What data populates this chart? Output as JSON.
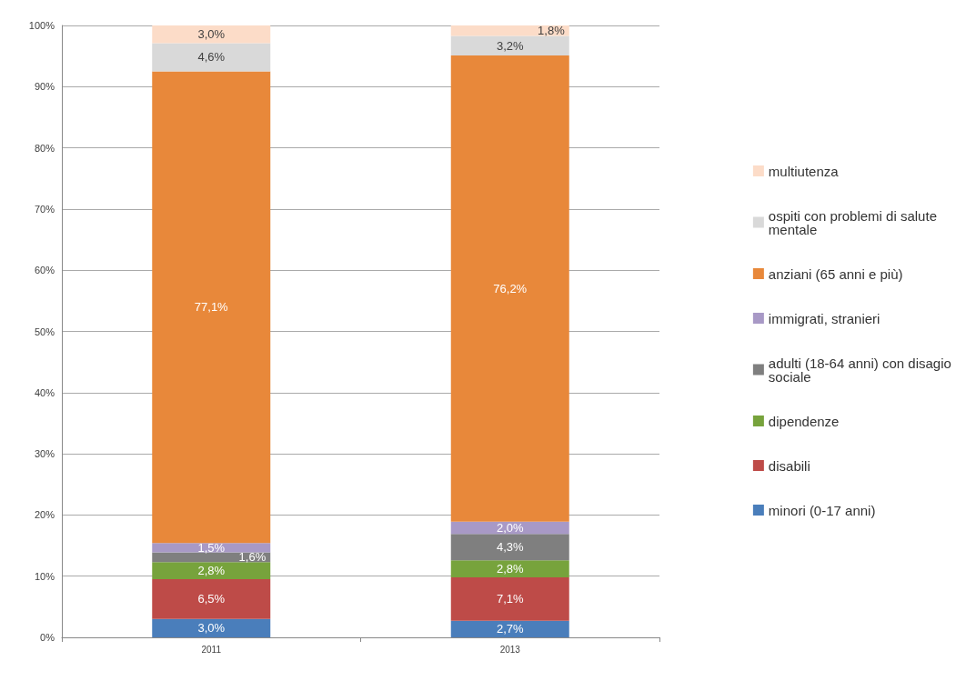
{
  "chart_data": {
    "type": "bar",
    "stacked": true,
    "categories": [
      "2011",
      "2013"
    ],
    "series": [
      {
        "name": "minori (0-17 anni)",
        "color": "#4a7ebb",
        "values": [
          3.0,
          2.7
        ],
        "value_labels": [
          "3,0%",
          "2,7%"
        ]
      },
      {
        "name": "disabili",
        "color": "#be4b48",
        "values": [
          6.5,
          7.1
        ],
        "value_labels": [
          "6,5%",
          "7,1%"
        ]
      },
      {
        "name": "dipendenze",
        "color": "#77a33c",
        "values": [
          2.8,
          2.8
        ],
        "value_labels": [
          "2,8%",
          "2,8%"
        ]
      },
      {
        "name": "adulti (18-64 anni) con disagio sociale",
        "color": "#7f7f7f",
        "values": [
          1.6,
          4.3
        ],
        "value_labels": [
          "1,6%",
          "4,3%"
        ]
      },
      {
        "name": "immigrati, stranieri",
        "color": "#a899c6",
        "values": [
          1.5,
          2.0
        ],
        "value_labels": [
          "1,5%",
          "2,0%"
        ]
      },
      {
        "name": "anziani (65 anni e più)",
        "color": "#e8883a",
        "values": [
          77.1,
          76.2
        ],
        "value_labels": [
          "77,1%",
          "76,2%"
        ]
      },
      {
        "name": "ospiti con problemi di salute mentale",
        "color": "#d9d9d9",
        "values": [
          4.6,
          3.2
        ],
        "value_labels": [
          "4,6%",
          "3,2%"
        ]
      },
      {
        "name": "multiutenza",
        "color": "#fcdcc8",
        "values": [
          3.0,
          1.8
        ],
        "value_labels": [
          "3,0%",
          "1,8%"
        ]
      }
    ],
    "ylim": [
      0,
      100
    ],
    "yticks": [
      {
        "value": 0,
        "label": "0%"
      },
      {
        "value": 10,
        "label": "10%"
      },
      {
        "value": 20,
        "label": "20%"
      },
      {
        "value": 30,
        "label": "30%"
      },
      {
        "value": 40,
        "label": "40%"
      },
      {
        "value": 50,
        "label": "50%"
      },
      {
        "value": 60,
        "label": "60%"
      },
      {
        "value": 70,
        "label": "70%"
      },
      {
        "value": 80,
        "label": "80%"
      },
      {
        "value": 90,
        "label": "90%"
      },
      {
        "value": 100,
        "label": "100%"
      }
    ],
    "grid": "y",
    "legend": "right"
  }
}
